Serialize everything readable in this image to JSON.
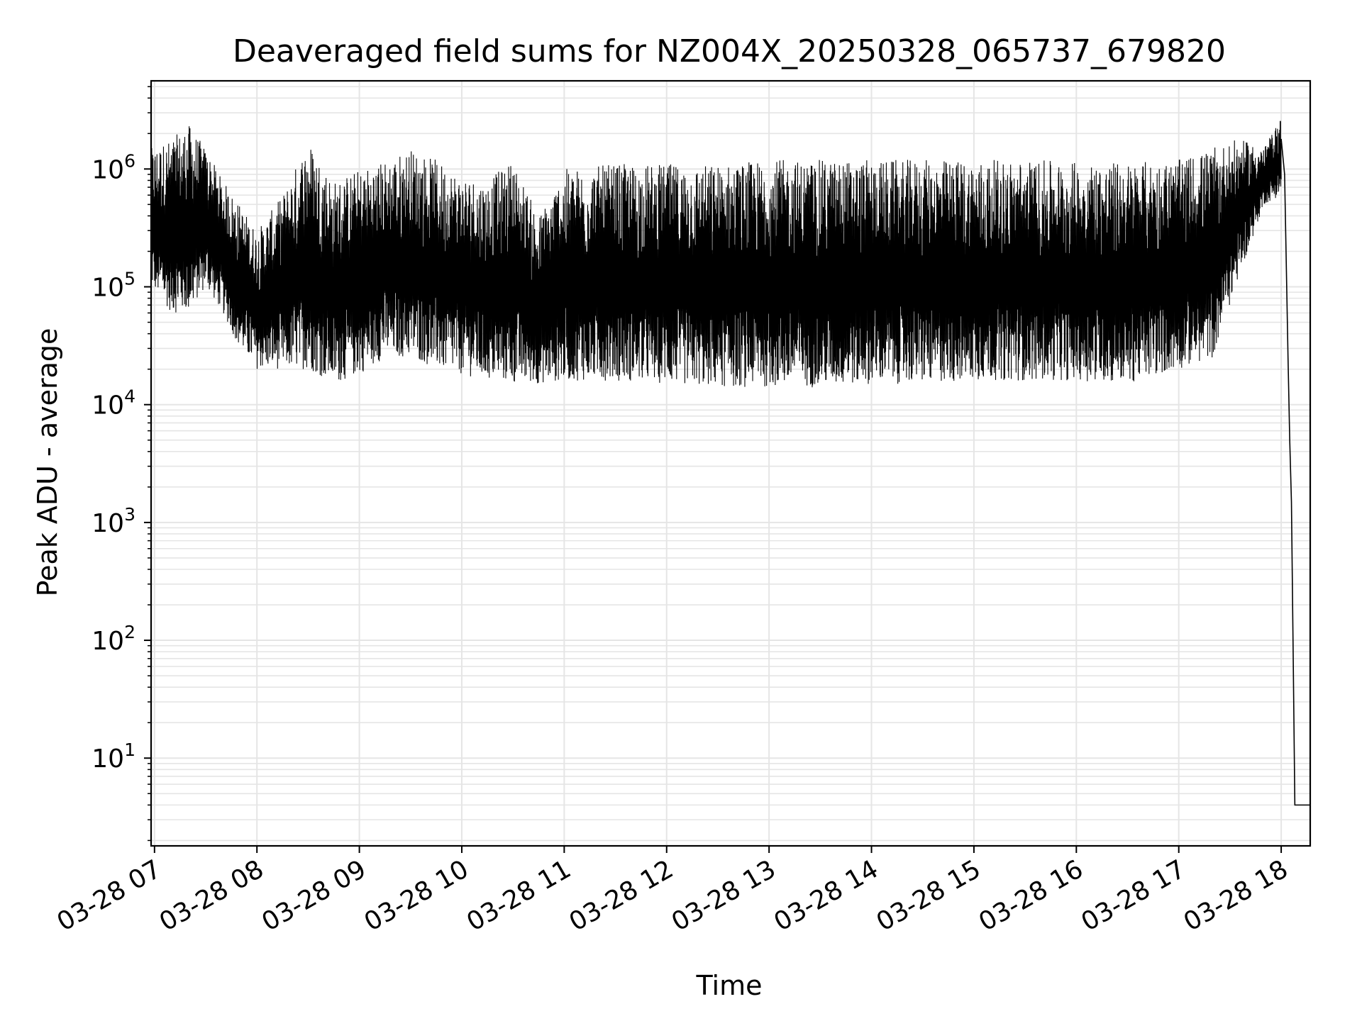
{
  "chart_data": {
    "type": "line",
    "title": "Deaveraged field sums for NZ004X_20250328_065737_679820",
    "xlabel": "Time",
    "ylabel": "Peak ADU - average",
    "yscale": "log",
    "ylim": [
      1.8,
      5600000
    ],
    "xlim": [
      "2025-03-28 06:58",
      "2025-03-28 18:17"
    ],
    "grid": true,
    "line_color": "#000000",
    "grid_color": "#e5e5e5",
    "x_ticks": [
      {
        "t": "2025-03-28 07:00",
        "label": "03-28 07"
      },
      {
        "t": "2025-03-28 08:00",
        "label": "03-28 08"
      },
      {
        "t": "2025-03-28 09:00",
        "label": "03-28 09"
      },
      {
        "t": "2025-03-28 10:00",
        "label": "03-28 10"
      },
      {
        "t": "2025-03-28 11:00",
        "label": "03-28 11"
      },
      {
        "t": "2025-03-28 12:00",
        "label": "03-28 12"
      },
      {
        "t": "2025-03-28 13:00",
        "label": "03-28 13"
      },
      {
        "t": "2025-03-28 14:00",
        "label": "03-28 14"
      },
      {
        "t": "2025-03-28 15:00",
        "label": "03-28 15"
      },
      {
        "t": "2025-03-28 16:00",
        "label": "03-28 16"
      },
      {
        "t": "2025-03-28 17:00",
        "label": "03-28 17"
      },
      {
        "t": "2025-03-28 18:00",
        "label": "03-28 18"
      }
    ],
    "y_ticks": [
      {
        "value": 10,
        "base": "10",
        "exp": "1"
      },
      {
        "value": 100,
        "base": "10",
        "exp": "2"
      },
      {
        "value": 1000,
        "base": "10",
        "exp": "3"
      },
      {
        "value": 10000,
        "base": "10",
        "exp": "4"
      },
      {
        "value": 100000,
        "base": "10",
        "exp": "5"
      },
      {
        "value": 1000000,
        "base": "10",
        "exp": "6"
      }
    ],
    "envelope": [
      {
        "t": "2025-03-28 06:58",
        "low": 100000,
        "high": 1500000
      },
      {
        "t": "2025-03-28 07:10",
        "low": 60000,
        "high": 1800000
      },
      {
        "t": "2025-03-28 07:20",
        "low": 60000,
        "high": 2400000
      },
      {
        "t": "2025-03-28 07:30",
        "low": 100000,
        "high": 1500000
      },
      {
        "t": "2025-03-28 07:40",
        "low": 60000,
        "high": 800000
      },
      {
        "t": "2025-03-28 07:50",
        "low": 30000,
        "high": 500000
      },
      {
        "t": "2025-03-28 08:00",
        "low": 20000,
        "high": 300000
      },
      {
        "t": "2025-03-28 08:15",
        "low": 20000,
        "high": 600000
      },
      {
        "t": "2025-03-28 08:30",
        "low": 20000,
        "high": 1800000
      },
      {
        "t": "2025-03-28 08:45",
        "low": 15000,
        "high": 800000
      },
      {
        "t": "2025-03-28 09:00",
        "low": 18000,
        "high": 1000000
      },
      {
        "t": "2025-03-28 09:15",
        "low": 25000,
        "high": 1200000
      },
      {
        "t": "2025-03-28 09:30",
        "low": 25000,
        "high": 1500000
      },
      {
        "t": "2025-03-28 09:45",
        "low": 20000,
        "high": 1200000
      },
      {
        "t": "2025-03-28 10:00",
        "low": 18000,
        "high": 900000
      },
      {
        "t": "2025-03-28 10:15",
        "low": 16000,
        "high": 800000
      },
      {
        "t": "2025-03-28 10:30",
        "low": 15000,
        "high": 1200000
      },
      {
        "t": "2025-03-28 10:45",
        "low": 15000,
        "high": 400000
      },
      {
        "t": "2025-03-28 11:00",
        "low": 16000,
        "high": 1000000
      },
      {
        "t": "2025-03-28 11:30",
        "low": 16000,
        "high": 1100000
      },
      {
        "t": "2025-03-28 12:00",
        "low": 15000,
        "high": 1100000
      },
      {
        "t": "2025-03-28 12:30",
        "low": 14000,
        "high": 1100000
      },
      {
        "t": "2025-03-28 13:00",
        "low": 14000,
        "high": 1200000
      },
      {
        "t": "2025-03-28 13:30",
        "low": 14000,
        "high": 1200000
      },
      {
        "t": "2025-03-28 14:00",
        "low": 15000,
        "high": 1200000
      },
      {
        "t": "2025-03-28 14:30",
        "low": 15000,
        "high": 1200000
      },
      {
        "t": "2025-03-28 15:00",
        "low": 16000,
        "high": 1200000
      },
      {
        "t": "2025-03-28 15:30",
        "low": 16000,
        "high": 1200000
      },
      {
        "t": "2025-03-28 16:00",
        "low": 16000,
        "high": 1150000
      },
      {
        "t": "2025-03-28 16:30",
        "low": 15000,
        "high": 1150000
      },
      {
        "t": "2025-03-28 17:00",
        "low": 20000,
        "high": 1200000
      },
      {
        "t": "2025-03-28 17:20",
        "low": 25000,
        "high": 1500000
      },
      {
        "t": "2025-03-28 17:35",
        "low": 120000,
        "high": 1800000
      },
      {
        "t": "2025-03-28 17:50",
        "low": 500000,
        "high": 1500000
      },
      {
        "t": "2025-03-28 18:00",
        "low": 600000,
        "high": 2800000
      }
    ],
    "tail": [
      {
        "t": "2025-03-28 18:00",
        "value": 1800000
      },
      {
        "t": "2025-03-28 18:02",
        "value": 900000
      },
      {
        "t": "2025-03-28 18:03",
        "value": 150000
      },
      {
        "t": "2025-03-28 18:04",
        "value": 25000
      },
      {
        "t": "2025-03-28 18:05",
        "value": 5000
      },
      {
        "t": "2025-03-28 18:06",
        "value": 1500
      },
      {
        "t": "2025-03-28 18:07",
        "value": 80
      },
      {
        "t": "2025-03-28 18:08",
        "value": 4
      },
      {
        "t": "2025-03-28 18:17",
        "value": 4
      }
    ]
  }
}
